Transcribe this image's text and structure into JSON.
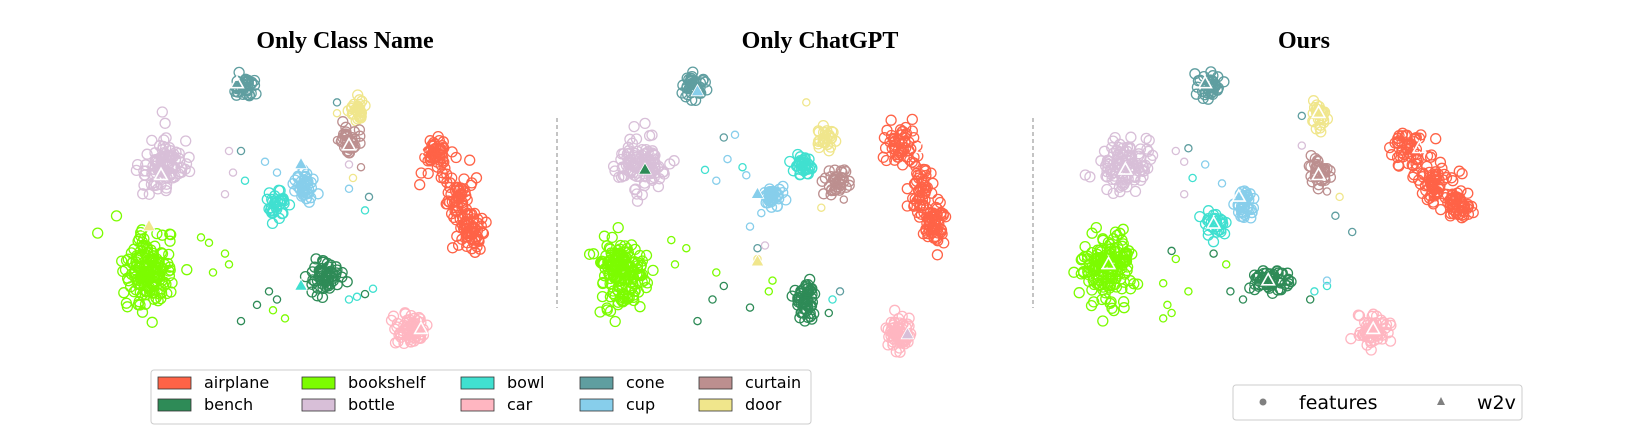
{
  "chart_data": [
    {
      "type": "scatter",
      "title": "Only Class Name",
      "classes": [
        {
          "name": "airplane",
          "n": 170,
          "blobs": [
            [
              0.78,
              0.32,
              0.035,
              0.06
            ],
            [
              0.83,
              0.48,
              0.035,
              0.09
            ],
            [
              0.87,
              0.6,
              0.03,
              0.07
            ]
          ],
          "w2v": [
            0.73,
            0.29
          ],
          "w2v_color": "white"
        },
        {
          "name": "bookshelf",
          "n": 170,
          "blobs": [
            [
              0.06,
              0.75,
              0.05,
              0.1
            ]
          ],
          "w2v": [
            0.06,
            0.58
          ],
          "w2v_color": "door"
        },
        {
          "name": "bottle",
          "n": 110,
          "blobs": [
            [
              0.1,
              0.35,
              0.05,
              0.08
            ]
          ],
          "w2v": [
            0.09,
            0.39
          ],
          "w2v_color": "white"
        },
        {
          "name": "cone",
          "n": 40,
          "blobs": [
            [
              0.3,
              0.06,
              0.025,
              0.04
            ]
          ],
          "w2v": [
            0.28,
            0.05
          ],
          "w2v_color": "white"
        },
        {
          "name": "door",
          "n": 30,
          "blobs": [
            [
              0.58,
              0.15,
              0.015,
              0.04
            ]
          ],
          "w2v": null,
          "w2v_color": null
        },
        {
          "name": "curtain",
          "n": 40,
          "blobs": [
            [
              0.56,
              0.27,
              0.02,
              0.05
            ]
          ],
          "w2v": [
            0.56,
            0.28
          ],
          "w2v_color": "white"
        },
        {
          "name": "cup",
          "n": 45,
          "blobs": [
            [
              0.45,
              0.43,
              0.02,
              0.05
            ]
          ],
          "w2v": [
            0.44,
            0.35
          ],
          "w2v_color": "cup"
        },
        {
          "name": "bowl",
          "n": 35,
          "blobs": [
            [
              0.38,
              0.5,
              0.02,
              0.04
            ]
          ],
          "w2v": null,
          "w2v_color": null
        },
        {
          "name": "bench",
          "n": 60,
          "blobs": [
            [
              0.5,
              0.77,
              0.035,
              0.05
            ]
          ],
          "w2v": [
            0.44,
            0.8
          ],
          "w2v_color": "bowl"
        },
        {
          "name": "car",
          "n": 70,
          "blobs": [
            [
              0.71,
              0.96,
              0.03,
              0.05
            ]
          ],
          "w2v": [
            0.74,
            0.96
          ],
          "w2v_color": "white"
        }
      ],
      "outliers": [
        [
          "bottle",
          0.26,
          0.3
        ],
        [
          "bottle",
          0.27,
          0.38
        ],
        [
          "cone",
          0.29,
          0.3
        ],
        [
          "cup",
          0.35,
          0.34
        ],
        [
          "bowl",
          0.3,
          0.41
        ],
        [
          "bottle",
          0.25,
          0.46
        ],
        [
          "cup",
          0.38,
          0.38
        ],
        [
          "bookshelf",
          0.19,
          0.62
        ],
        [
          "bookshelf",
          0.21,
          0.64
        ],
        [
          "bookshelf",
          0.25,
          0.68
        ],
        [
          "bookshelf",
          0.22,
          0.75
        ],
        [
          "bookshelf",
          0.26,
          0.72
        ],
        [
          "bench",
          0.36,
          0.82
        ],
        [
          "bench",
          0.38,
          0.85
        ],
        [
          "bench",
          0.33,
          0.87
        ],
        [
          "bench",
          0.29,
          0.93
        ],
        [
          "bookshelf",
          0.37,
          0.89
        ],
        [
          "bookshelf",
          0.4,
          0.92
        ],
        [
          "bowl",
          0.56,
          0.85
        ],
        [
          "bowl",
          0.58,
          0.84
        ],
        [
          "bench",
          0.6,
          0.83
        ],
        [
          "bowl",
          0.62,
          0.81
        ],
        [
          "cone",
          0.53,
          0.12
        ],
        [
          "door",
          0.53,
          0.16
        ],
        [
          "curtain",
          0.53,
          0.26
        ],
        [
          "cup",
          0.56,
          0.44
        ],
        [
          "bowl",
          0.6,
          0.52
        ],
        [
          "door",
          0.57,
          0.4
        ],
        [
          "cone",
          0.61,
          0.47
        ],
        [
          "bottle",
          0.56,
          0.35
        ],
        [
          "curtain",
          0.59,
          0.36
        ]
      ]
    },
    {
      "type": "scatter",
      "title": "Only ChatGPT",
      "classes": [
        {
          "name": "airplane",
          "n": 170,
          "blobs": [
            [
              0.8,
              0.28,
              0.035,
              0.06
            ],
            [
              0.86,
              0.45,
              0.03,
              0.09
            ],
            [
              0.89,
              0.57,
              0.025,
              0.07
            ]
          ],
          "w2v": [
            0.86,
            0.29
          ],
          "w2v_color": "white"
        },
        {
          "name": "bookshelf",
          "n": 170,
          "blobs": [
            [
              0.06,
              0.75,
              0.05,
              0.1
            ]
          ],
          "w2v": null,
          "w2v_color": null
        },
        {
          "name": "bottle",
          "n": 110,
          "blobs": [
            [
              0.11,
              0.35,
              0.05,
              0.08
            ]
          ],
          "w2v": [
            0.12,
            0.37
          ],
          "w2v_color": "bench"
        },
        {
          "name": "cone",
          "n": 40,
          "blobs": [
            [
              0.25,
              0.06,
              0.025,
              0.04
            ]
          ],
          "w2v": [
            0.26,
            0.08
          ],
          "w2v_color": "cup"
        },
        {
          "name": "door",
          "n": 30,
          "blobs": [
            [
              0.6,
              0.26,
              0.018,
              0.045
            ]
          ],
          "w2v": null,
          "w2v_color": null
        },
        {
          "name": "curtain",
          "n": 40,
          "blobs": [
            [
              0.63,
              0.42,
              0.03,
              0.04
            ]
          ],
          "w2v": null,
          "w2v_color": null
        },
        {
          "name": "cup",
          "n": 45,
          "blobs": [
            [
              0.46,
              0.47,
              0.025,
              0.03
            ]
          ],
          "w2v": [
            0.42,
            0.46
          ],
          "w2v_color": "cup"
        },
        {
          "name": "bowl",
          "n": 35,
          "blobs": [
            [
              0.54,
              0.35,
              0.022,
              0.03
            ]
          ],
          "w2v": null,
          "w2v_color": null
        },
        {
          "name": "bench",
          "n": 60,
          "blobs": [
            [
              0.55,
              0.85,
              0.03,
              0.06
            ]
          ],
          "w2v": null,
          "w2v_color": null
        },
        {
          "name": "car",
          "n": 70,
          "blobs": [
            [
              0.8,
              0.98,
              0.028,
              0.05
            ]
          ],
          "w2v": [
            0.82,
            0.98
          ],
          "w2v_color": "bottle"
        }
      ],
      "outliers": [
        [
          "cone",
          0.33,
          0.25
        ],
        [
          "cup",
          0.36,
          0.24
        ],
        [
          "cup",
          0.34,
          0.33
        ],
        [
          "bowl",
          0.38,
          0.36
        ],
        [
          "cup",
          0.39,
          0.39
        ],
        [
          "cup",
          0.31,
          0.41
        ],
        [
          "bowl",
          0.28,
          0.37
        ],
        [
          "cup",
          0.43,
          0.53
        ],
        [
          "cup",
          0.4,
          0.58
        ],
        [
          "cone",
          0.42,
          0.66
        ],
        [
          "door",
          0.42,
          0.7
        ],
        [
          "bottle",
          0.44,
          0.65
        ],
        [
          "bookshelf",
          0.19,
          0.63
        ],
        [
          "bookshelf",
          0.23,
          0.66
        ],
        [
          "bookshelf",
          0.2,
          0.72
        ],
        [
          "bookshelf",
          0.31,
          0.75
        ],
        [
          "bench",
          0.33,
          0.8
        ],
        [
          "bench",
          0.3,
          0.85
        ],
        [
          "bench",
          0.4,
          0.88
        ],
        [
          "bench",
          0.26,
          0.93
        ],
        [
          "bookshelf",
          0.46,
          0.78
        ],
        [
          "bookshelf",
          0.45,
          0.82
        ],
        [
          "bowl",
          0.62,
          0.85
        ],
        [
          "cone",
          0.64,
          0.82
        ],
        [
          "bench",
          0.61,
          0.9
        ],
        [
          "door",
          0.59,
          0.51
        ],
        [
          "door",
          0.55,
          0.12
        ],
        [
          "curtain",
          0.65,
          0.48
        ]
      ],
      "w2v_extra": [
        [
          "door",
          0.42,
          0.71
        ]
      ]
    },
    {
      "type": "scatter",
      "title": "Ours",
      "classes": [
        {
          "name": "airplane",
          "n": 170,
          "blobs": [
            [
              0.8,
              0.3,
              0.035,
              0.06
            ],
            [
              0.86,
              0.42,
              0.035,
              0.06
            ],
            [
              0.91,
              0.5,
              0.025,
              0.04
            ]
          ],
          "w2v": [
            0.82,
            0.29
          ],
          "w2v_color": "white"
        },
        {
          "name": "bookshelf",
          "n": 170,
          "blobs": [
            [
              0.08,
              0.73,
              0.05,
              0.1
            ]
          ],
          "w2v": [
            0.08,
            0.72
          ],
          "w2v_color": "white"
        },
        {
          "name": "bottle",
          "n": 110,
          "blobs": [
            [
              0.12,
              0.35,
              0.05,
              0.08
            ]
          ],
          "w2v": [
            0.12,
            0.37
          ],
          "w2v_color": "white"
        },
        {
          "name": "cone",
          "n": 40,
          "blobs": [
            [
              0.32,
              0.06,
              0.025,
              0.04
            ]
          ],
          "w2v": [
            0.31,
            0.05
          ],
          "w2v_color": "white"
        },
        {
          "name": "door",
          "n": 30,
          "blobs": [
            [
              0.58,
              0.16,
              0.015,
              0.04
            ]
          ],
          "w2v": [
            0.58,
            0.16
          ],
          "w2v_color": "white"
        },
        {
          "name": "curtain",
          "n": 40,
          "blobs": [
            [
              0.58,
              0.38,
              0.02,
              0.04
            ]
          ],
          "w2v": [
            0.58,
            0.39
          ],
          "w2v_color": "white"
        },
        {
          "name": "cup",
          "n": 45,
          "blobs": [
            [
              0.4,
              0.5,
              0.02,
              0.05
            ]
          ],
          "w2v": [
            0.39,
            0.47
          ],
          "w2v_color": "white"
        },
        {
          "name": "bowl",
          "n": 35,
          "blobs": [
            [
              0.33,
              0.57,
              0.02,
              0.04
            ]
          ],
          "w2v": [
            0.33,
            0.57
          ],
          "w2v_color": "white"
        },
        {
          "name": "bench",
          "n": 60,
          "blobs": [
            [
              0.46,
              0.78,
              0.04,
              0.035
            ]
          ],
          "w2v": [
            0.46,
            0.78
          ],
          "w2v_color": "white"
        },
        {
          "name": "car",
          "n": 70,
          "blobs": [
            [
              0.71,
              0.96,
              0.03,
              0.05
            ]
          ],
          "w2v": [
            0.71,
            0.96
          ],
          "w2v_color": "white"
        }
      ],
      "outliers": [
        [
          "bottle",
          0.24,
          0.3
        ],
        [
          "bottle",
          0.26,
          0.34
        ],
        [
          "cone",
          0.27,
          0.29
        ],
        [
          "cup",
          0.31,
          0.35
        ],
        [
          "bowl",
          0.28,
          0.4
        ],
        [
          "cup",
          0.35,
          0.42
        ],
        [
          "bottle",
          0.26,
          0.46
        ],
        [
          "bench",
          0.23,
          0.67
        ],
        [
          "bookshelf",
          0.24,
          0.7
        ],
        [
          "bench",
          0.33,
          0.68
        ],
        [
          "bookshelf",
          0.21,
          0.79
        ],
        [
          "bookshelf",
          0.27,
          0.82
        ],
        [
          "bookshelf",
          0.22,
          0.87
        ],
        [
          "bookshelf",
          0.21,
          0.92
        ],
        [
          "bookshelf",
          0.23,
          0.9
        ],
        [
          "bench",
          0.37,
          0.82
        ],
        [
          "bench",
          0.4,
          0.85
        ],
        [
          "bookshelf",
          0.36,
          0.72
        ],
        [
          "bowl",
          0.57,
          0.82
        ],
        [
          "bowl",
          0.6,
          0.8
        ],
        [
          "bench",
          0.56,
          0.85
        ],
        [
          "cup",
          0.6,
          0.78
        ],
        [
          "cone",
          0.54,
          0.17
        ],
        [
          "bottle",
          0.54,
          0.28
        ],
        [
          "door",
          0.63,
          0.47
        ],
        [
          "cone",
          0.62,
          0.54
        ],
        [
          "curtain",
          0.6,
          0.45
        ],
        [
          "cone",
          0.66,
          0.6
        ]
      ]
    }
  ],
  "legend_classes": {
    "entries": [
      {
        "label": "airplane",
        "color": "#FF6347"
      },
      {
        "label": "bench",
        "color": "#2E8B57"
      },
      {
        "label": "bookshelf",
        "color": "#7CFC00"
      },
      {
        "label": "bottle",
        "color": "#D8BFD8"
      },
      {
        "label": "bowl",
        "color": "#40E0D0"
      },
      {
        "label": "car",
        "color": "#FFB6C1"
      },
      {
        "label": "cone",
        "color": "#5F9EA0"
      },
      {
        "label": "cup",
        "color": "#87CEEB"
      },
      {
        "label": "curtain",
        "color": "#BC8F8F"
      },
      {
        "label": "door",
        "color": "#F0E68C"
      }
    ]
  },
  "legend_markers": {
    "features_label": "features",
    "w2v_label": "w2v",
    "marker_color": "#808080"
  }
}
